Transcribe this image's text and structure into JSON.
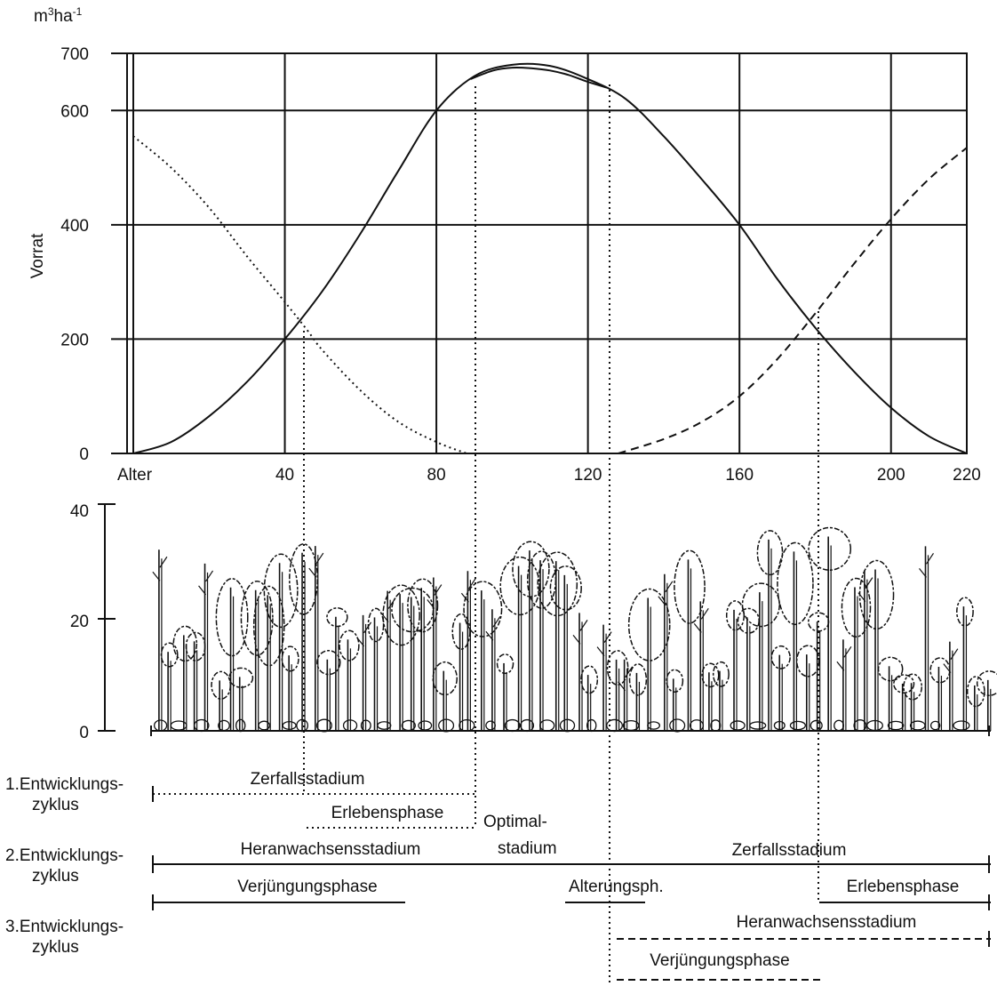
{
  "colors": {
    "ink": "#111111",
    "background": "#ffffff"
  },
  "top_chart": {
    "unit_label_base": "m",
    "unit_label_sup1": "3",
    "unit_label_mid": "ha",
    "unit_label_sup2": "-1",
    "ylabel": "Vorrat",
    "x_start_label": "Alter"
  },
  "bottom_chart": {
    "yticks": [
      "40",
      "20",
      "0"
    ],
    "content": "tree stand illustration"
  },
  "chart_data": [
    {
      "type": "line",
      "title": "",
      "xlabel": "Alter",
      "ylabel": "Vorrat",
      "unit": "m3ha-1",
      "xlim": [
        0,
        220
      ],
      "ylim": [
        0,
        700
      ],
      "grid": true,
      "x_ticks": [
        {
          "value": 0,
          "label": "Alter"
        },
        {
          "value": 40,
          "label": "40"
        },
        {
          "value": 80,
          "label": "80"
        },
        {
          "value": 120,
          "label": "120"
        },
        {
          "value": 160,
          "label": "160"
        },
        {
          "value": 200,
          "label": "200"
        },
        {
          "value": 220,
          "label": "220"
        }
      ],
      "y_ticks": [
        {
          "value": 0,
          "label": "0"
        },
        {
          "value": 200,
          "label": "200"
        },
        {
          "value": 400,
          "label": "400"
        },
        {
          "value": 600,
          "label": "600"
        },
        {
          "value": 700,
          "label": "700"
        }
      ],
      "series": [
        {
          "style": "dotted",
          "x": [
            0,
            10,
            20,
            30,
            40,
            46,
            50,
            60,
            70,
            80,
            88
          ],
          "y": [
            555,
            500,
            430,
            345,
            265,
            215,
            180,
            110,
            55,
            20,
            0
          ]
        },
        {
          "style": "solid",
          "x": [
            0,
            10,
            20,
            30,
            40,
            50,
            60,
            70,
            80,
            90,
            100,
            110,
            120,
            130,
            140,
            150,
            160,
            170,
            180,
            190,
            200,
            210,
            220
          ],
          "y": [
            0,
            20,
            65,
            125,
            200,
            285,
            385,
            495,
            600,
            660,
            680,
            678,
            655,
            620,
            555,
            480,
            400,
            305,
            220,
            145,
            80,
            30,
            0
          ]
        },
        {
          "style": "solid",
          "x": [
            89,
            95,
            100,
            105,
            110,
            115,
            120,
            125
          ],
          "y": [
            655,
            670,
            675,
            674,
            670,
            662,
            650,
            640
          ]
        },
        {
          "style": "dashed",
          "x": [
            128,
            140,
            150,
            160,
            170,
            180,
            190,
            200,
            210,
            220
          ],
          "y": [
            0,
            25,
            55,
            100,
            165,
            245,
            330,
            410,
            480,
            535
          ]
        }
      ]
    },
    {
      "type": "table",
      "rows": [
        {
          "label": [
            "1.Entwicklungs-",
            "zyklus"
          ],
          "bars": [
            {
              "text": "Zerfallsstadium",
              "from": 0,
              "to": 85,
              "style": "dotted"
            },
            {
              "text": "Erlebensphase",
              "from": 41,
              "to": 85,
              "style": "dotted"
            }
          ]
        },
        {
          "label": [
            "2.Entwicklungs-",
            "zyklus"
          ],
          "bars": [
            {
              "text": "Heranwachsensstadium",
              "from": 0,
              "to": 85,
              "style": "solid"
            },
            {
              "text": "Optimal-\nstadium",
              "from": 85,
              "to": 122,
              "style": "none"
            },
            {
              "text": "Zerfallsstadium",
              "from": 122,
              "to": 222,
              "style": "solid"
            },
            {
              "text": "Verjüngungsphase",
              "from": 0,
              "to": 67,
              "style": "solid"
            },
            {
              "text": "Alterungsph.",
              "from": 109,
              "to": 130,
              "style": "solid"
            },
            {
              "text": "Erlebensphase",
              "from": 177,
              "to": 222,
              "style": "solid"
            }
          ]
        },
        {
          "label": [
            "3.Entwicklungs-",
            "zyklus"
          ],
          "bars": [
            {
              "text": "Heranwachsensstadium",
              "from": 122,
              "to": 222,
              "style": "dashed"
            },
            {
              "text": "Verjüngungsphase",
              "from": 122,
              "to": 178,
              "style": "dashed"
            }
          ]
        }
      ]
    }
  ],
  "phases": {
    "c1_main": "Zerfallsstadium",
    "c1_sub": "Erlebensphase",
    "optimal_1": "Optimal-",
    "optimal_2": "stadium",
    "c2_main": "Heranwachsensstadium",
    "c2_zerfall": "Zerfallsstadium",
    "c2_verj": "Verjüngungsphase",
    "c2_alter": "Alterungsph.",
    "c2_erleb": "Erlebensphase",
    "c3_heran": "Heranwachsensstadium",
    "c3_verj": "Verjüngungsphase"
  },
  "cycles": [
    {
      "line1": "1.Entwicklungs-",
      "line2": "zyklus"
    },
    {
      "line1": "2.Entwicklungs-",
      "line2": "zyklus"
    },
    {
      "line1": "3.Entwicklungs-",
      "line2": "zyklus"
    }
  ]
}
